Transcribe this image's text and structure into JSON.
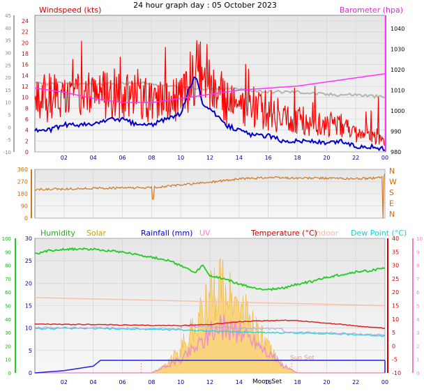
{
  "header": {
    "title": "24 hour graph day : 05 October 2023"
  },
  "chart_data": [
    {
      "type": "line",
      "panel": "wind",
      "title": "",
      "labels": {
        "windspeed": "Windspeed (kts)",
        "barometer": "Barometer (hpa)"
      },
      "x_ticks": [
        "02",
        "04",
        "06",
        "08",
        "10",
        "12",
        "14",
        "16",
        "18",
        "20",
        "22",
        "00"
      ],
      "y_left_ticks": [
        "0",
        "2",
        "4",
        "6",
        "8",
        "10",
        "12",
        "14",
        "16",
        "18",
        "20",
        "22",
        "24"
      ],
      "y_left_range": [
        0,
        24
      ],
      "y_outer_ticks": [
        "-10",
        "-5",
        "0",
        "5",
        "10",
        "15",
        "20",
        "25",
        "30",
        "35",
        "40",
        "45"
      ],
      "y_outer_range": [
        -10,
        45
      ],
      "y_right_ticks": [
        "980",
        "990",
        "1000",
        "1010",
        "1020",
        "1030",
        "1040"
      ],
      "y_right_range": [
        980,
        1045
      ],
      "series": [
        {
          "name": "Windspeed (kts)",
          "color": "#ff0000",
          "x": [
            0,
            1,
            2,
            3,
            4,
            5,
            6,
            7,
            8,
            9,
            10,
            10.5,
            11,
            11.5,
            12,
            13,
            14,
            15,
            16,
            17,
            18,
            19,
            20,
            21,
            22,
            23,
            24
          ],
          "y": [
            9,
            10,
            10,
            10,
            11,
            11,
            10,
            10,
            9,
            9,
            10,
            13,
            14,
            16,
            13,
            9,
            8,
            8,
            7,
            6,
            6,
            5,
            5,
            5,
            3,
            3,
            2
          ]
        },
        {
          "name": "Wind average",
          "color": "#0000cc",
          "x": [
            0,
            1,
            2,
            3,
            4,
            5,
            6,
            7,
            8,
            9,
            10,
            10.5,
            11,
            11.5,
            12,
            13,
            14,
            15,
            16,
            17,
            18,
            19,
            20,
            21,
            22,
            23,
            24
          ],
          "y": [
            4,
            4,
            5,
            5,
            5,
            6,
            6,
            5,
            5,
            6,
            7,
            11,
            14,
            9,
            8,
            5,
            4,
            3,
            3,
            2,
            2,
            2,
            1.5,
            2,
            1,
            1,
            0.5
          ]
        },
        {
          "name": "Wind gust max",
          "color": "#b4b4b4",
          "x": [
            0,
            2,
            4,
            6,
            8,
            10,
            12,
            14,
            16,
            18,
            20,
            22,
            24
          ],
          "y": [
            12.5,
            12.5,
            12.5,
            12.5,
            12.5,
            12,
            11.5,
            11.5,
            11,
            11,
            10.5,
            10.5,
            10
          ]
        },
        {
          "name": "Barometer (hpa)",
          "color": "#ff33ff",
          "x": [
            0,
            2,
            4,
            6,
            8,
            10,
            12,
            14,
            16,
            18,
            20,
            22,
            24
          ],
          "y": [
            1011,
            1009,
            1006,
            1004,
            1004,
            1006,
            1008,
            1010,
            1011,
            1012,
            1014,
            1016,
            1018
          ]
        }
      ]
    },
    {
      "type": "line",
      "panel": "direction",
      "y_left_ticks": [
        "0",
        "90",
        "180",
        "270",
        "360"
      ],
      "y_range": [
        0,
        360
      ],
      "y_right_labels": [
        "N",
        "W",
        "S",
        "E",
        "N"
      ],
      "series": [
        {
          "name": "Wind direction",
          "color": "#d07820",
          "x": [
            0,
            2,
            4,
            6,
            8,
            10,
            12,
            14,
            16,
            18,
            20,
            22,
            23.9,
            24
          ],
          "y": [
            210,
            215,
            220,
            222,
            225,
            245,
            265,
            290,
            300,
            295,
            295,
            290,
            300,
            330
          ]
        }
      ]
    },
    {
      "type": "line",
      "panel": "temperature",
      "labels": {
        "humidity": "Humidity",
        "solar": "Solar",
        "rainfall": "Rainfall (mm)",
        "uv": "UV",
        "temperature": "Temperature (°C)",
        "indoor": "Indoor",
        "dewpoint": "Dew Point (°C)",
        "sunset": "Sun Set",
        "moonset": "Moon Set"
      },
      "y_humidity_ticks": [
        "0",
        "10",
        "20",
        "30",
        "40",
        "50",
        "60",
        "70",
        "80",
        "90",
        "100"
      ],
      "y_humidity_range": [
        0,
        100
      ],
      "y_rain_ticks": [
        "0",
        "5",
        "10",
        "15",
        "20",
        "25",
        "30"
      ],
      "y_rain_range": [
        0,
        30
      ],
      "y_temp_ticks": [
        "-10",
        "-5",
        "0",
        "5",
        "10",
        "15",
        "20",
        "25",
        "30",
        "35",
        "40"
      ],
      "y_temp_range": [
        -10,
        40
      ],
      "y_uv_ticks": [
        "0",
        "1",
        "2",
        "3",
        "4",
        "5",
        "6",
        "7",
        "8",
        "9",
        "10"
      ],
      "y_uv_range": [
        0,
        10
      ],
      "series": [
        {
          "name": "Humidity",
          "color": "#22cc22",
          "x": [
            0,
            1,
            2,
            3,
            4,
            5,
            6,
            7,
            8,
            9,
            10,
            11,
            11.5,
            12,
            13,
            14,
            15,
            16,
            17,
            18,
            19,
            20,
            21,
            22,
            23,
            24
          ],
          "y": [
            88,
            91,
            92,
            92,
            92,
            91,
            90,
            88,
            86,
            84,
            80,
            74,
            80,
            72,
            70,
            66,
            63,
            62,
            63,
            66,
            68,
            71,
            73,
            75,
            76,
            78
          ]
        },
        {
          "name": "Rainfall (mm)",
          "color": "#2222dd",
          "x": [
            0,
            2,
            3,
            4,
            4.5,
            11.4,
            11.5,
            24
          ],
          "y": [
            0,
            0.5,
            1,
            1.5,
            2.8,
            2.8,
            2.8,
            2.8
          ]
        },
        {
          "name": "Temperature (°C)",
          "color": "#dd2222",
          "x": [
            0,
            2,
            4,
            6,
            8,
            10,
            12,
            14,
            16,
            17,
            18,
            20,
            22,
            24
          ],
          "y": [
            8.2,
            8.0,
            8.0,
            7.8,
            7.6,
            7.6,
            8,
            9,
            9.4,
            9.6,
            9.4,
            8.5,
            7.5,
            6.5
          ]
        },
        {
          "name": "Indoor",
          "color": "#f5c2a8",
          "x": [
            0,
            4,
            8,
            12,
            16,
            20,
            24
          ],
          "y": [
            18,
            17.5,
            17,
            16.5,
            16,
            15.5,
            15
          ]
        },
        {
          "name": "Dew Point (°C)",
          "color": "#22dddd",
          "x": [
            0,
            2,
            4,
            6,
            8,
            10,
            12,
            14,
            16,
            18,
            20,
            22,
            24
          ],
          "y": [
            6.5,
            6.5,
            6.5,
            6.3,
            6.2,
            6,
            5.6,
            5.2,
            5,
            4.8,
            4.6,
            4.2,
            3.8
          ]
        },
        {
          "name": "Solar",
          "color": "#f0c850",
          "x": [
            0,
            8,
            9,
            10,
            11,
            12,
            12.5,
            13,
            14,
            15,
            16,
            17,
            18,
            24
          ],
          "y": [
            0,
            0,
            2,
            6,
            12,
            18,
            22,
            20,
            16,
            12,
            6,
            2,
            0,
            0
          ]
        },
        {
          "name": "UV",
          "color": "#f090c8",
          "x": [
            0,
            8,
            9,
            10,
            11,
            12,
            13,
            14,
            15,
            16,
            17,
            18,
            24
          ],
          "y": [
            0,
            0,
            0.5,
            1,
            2,
            3,
            3.5,
            3,
            2.5,
            1.5,
            0.5,
            0,
            0
          ]
        }
      ]
    }
  ],
  "colors": {
    "windspeed": "#ff0000",
    "barometer": "#ff33ff",
    "humidity": "#22cc22",
    "solar": "#c8a000",
    "rainfall": "#0000cc",
    "uv": "#f080c0",
    "temperature": "#cc0000",
    "indoor": "#f0b8a0",
    "dewpoint": "#22dddd",
    "direction": "#d07820"
  }
}
